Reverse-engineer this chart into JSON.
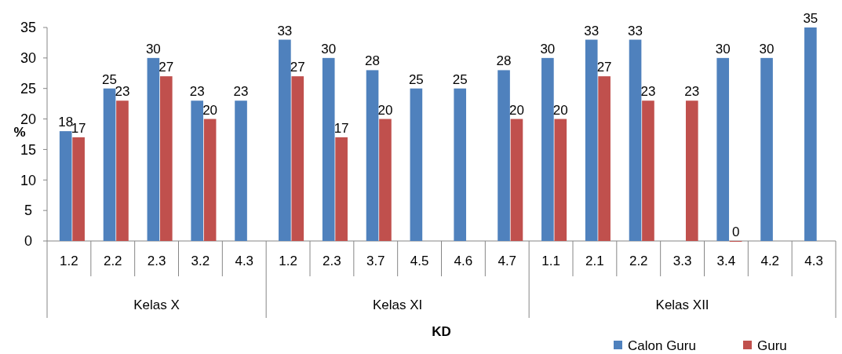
{
  "chart_data": {
    "type": "bar",
    "xlabel": "KD",
    "ylabel": "%",
    "categories": [
      "1.2",
      "2.2",
      "2.3",
      "3.2",
      "4.3",
      "1.2",
      "2.3",
      "3.7",
      "4.5",
      "4.6",
      "4.7",
      "1.1",
      "2.1",
      "2.2",
      "3.3",
      "3.4",
      "4.2",
      "4.3"
    ],
    "series": [
      {
        "name": "Calon Guru",
        "color": "#4f81bd",
        "values": [
          18,
          25,
          30,
          23,
          23,
          33,
          30,
          28,
          25,
          25,
          28,
          30,
          33,
          33,
          null,
          30,
          30,
          35
        ]
      },
      {
        "name": "Guru",
        "color": "#c0504d",
        "values": [
          17,
          23,
          27,
          20,
          null,
          27,
          17,
          20,
          null,
          null,
          20,
          20,
          27,
          23,
          23,
          0,
          null,
          null
        ]
      }
    ],
    "annotations": [
      "Kelas X",
      "Kelas XI",
      "Kelas XII"
    ],
    "ylim": [
      0,
      35
    ],
    "yticks": [
      0,
      5,
      10,
      15,
      20,
      25,
      30,
      35
    ],
    "data_labels": true,
    "legend": "bottom right",
    "grid": false
  }
}
